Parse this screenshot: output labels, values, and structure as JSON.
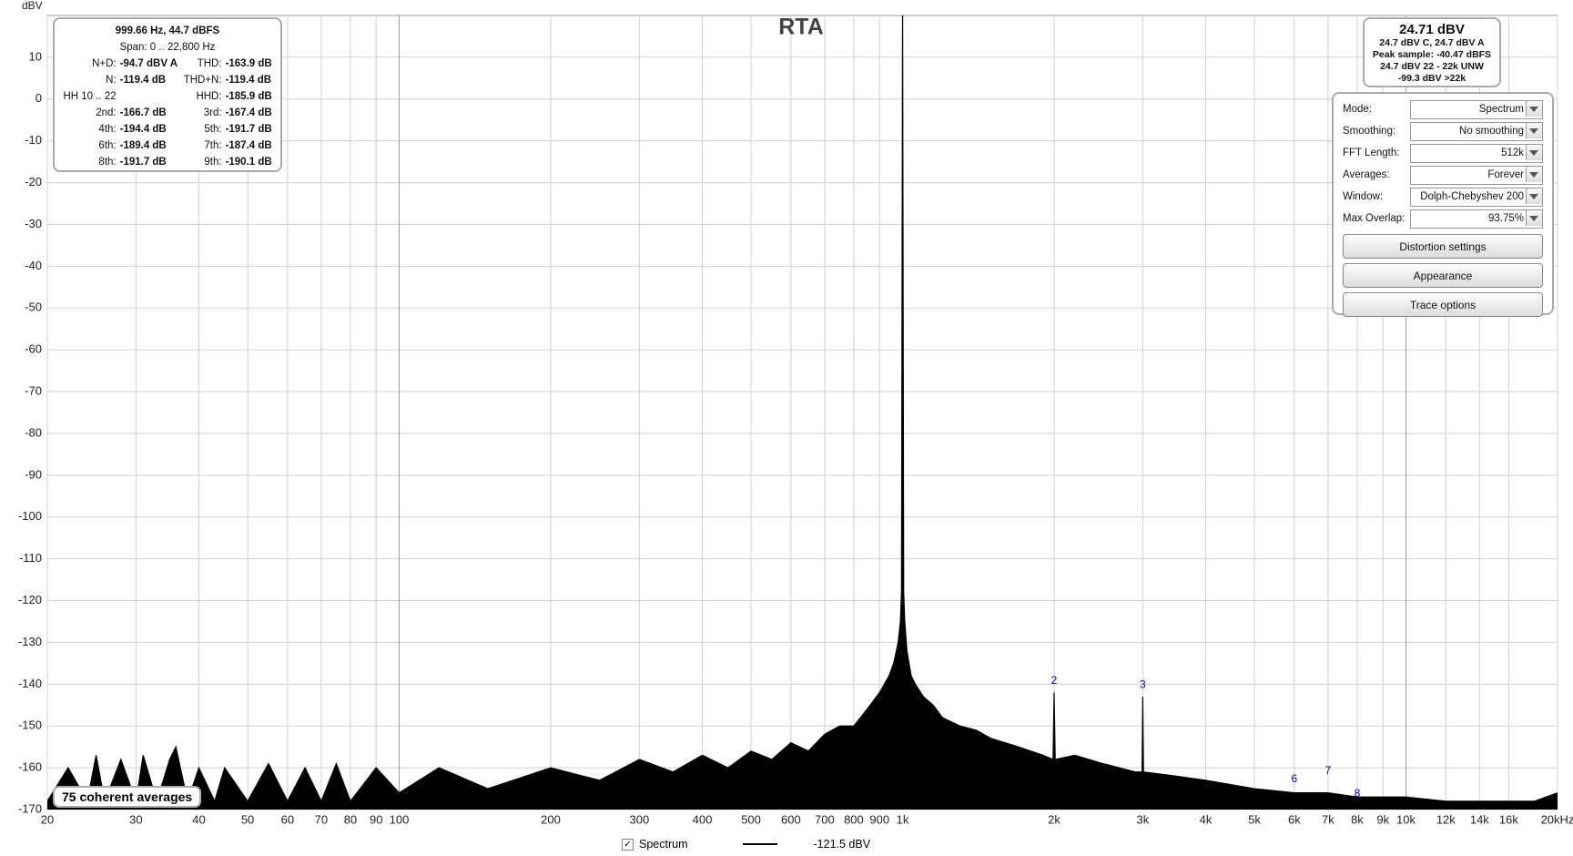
{
  "chart_data": {
    "type": "line",
    "title": "RTA",
    "y_label": "dBV",
    "log_x": true,
    "grid": true,
    "xlim": [
      20,
      20000
    ],
    "ylim": [
      -170,
      20
    ],
    "xticks": [
      20,
      30,
      40,
      50,
      60,
      70,
      80,
      90,
      100,
      200,
      300,
      400,
      500,
      600,
      700,
      800,
      900,
      {
        "value": 1000,
        "label": "1k"
      },
      {
        "value": 2000,
        "label": "2k"
      },
      {
        "value": 3000,
        "label": "3k"
      },
      {
        "value": 4000,
        "label": "4k"
      },
      {
        "value": 5000,
        "label": "5k"
      },
      {
        "value": 6000,
        "label": "6k"
      },
      {
        "value": 7000,
        "label": "7k"
      },
      {
        "value": 8000,
        "label": "8k"
      },
      {
        "value": 9000,
        "label": "9k"
      },
      {
        "value": 10000,
        "label": "10k"
      },
      {
        "value": 12000,
        "label": "12k"
      },
      {
        "value": 14000,
        "label": "14k"
      },
      {
        "value": 16000,
        "label": "16k"
      },
      {
        "value": 20000,
        "label": "20kHz"
      }
    ],
    "yticks": [
      10,
      0,
      -10,
      -20,
      -30,
      -40,
      -50,
      -60,
      -70,
      -80,
      -90,
      -100,
      -110,
      -120,
      -130,
      -140,
      -150,
      -160,
      -170
    ],
    "x": [
      20,
      22,
      24,
      25,
      26,
      28,
      30,
      31,
      33,
      35,
      36,
      38,
      40,
      43,
      45,
      50,
      55,
      60,
      65,
      70,
      75,
      80,
      90,
      100,
      120,
      150,
      200,
      250,
      300,
      350,
      400,
      450,
      500,
      550,
      600,
      650,
      700,
      750,
      800,
      850,
      900,
      940,
      960,
      980,
      990,
      995,
      1000,
      1005,
      1010,
      1020,
      1040,
      1060,
      1100,
      1150,
      1200,
      1300,
      1400,
      1500,
      1700,
      1900,
      1990,
      2000,
      2010,
      2200,
      2500,
      2900,
      2990,
      3000,
      3010,
      3500,
      4000,
      5000,
      6000,
      7000,
      8000,
      10000,
      12000,
      15000,
      18000,
      20000
    ],
    "series": [
      {
        "name": "Spectrum",
        "color": "#000000",
        "legend_label": "-121.5 dBV",
        "values": [
          -168,
          -160,
          -168,
          -157,
          -168,
          -158,
          -168,
          -157,
          -168,
          -158,
          -155,
          -168,
          -160,
          -168,
          -160,
          -168,
          -159,
          -168,
          -160,
          -168,
          -159,
          -168,
          -160,
          -166,
          -160,
          -165,
          -160,
          -163,
          -158,
          -161,
          -157,
          -160,
          -156,
          -158,
          -154,
          -156,
          -152,
          -150,
          -150,
          -146,
          -142,
          -138,
          -135,
          -130,
          -125,
          -118,
          24.7,
          -118,
          -125,
          -132,
          -138,
          -140,
          -143,
          -145,
          -148,
          -150,
          -151,
          -153,
          -155,
          -157,
          -158,
          -142,
          -158,
          -157,
          -159,
          -161,
          -161,
          -143,
          -161,
          -162,
          -163,
          -165,
          -166,
          -166,
          -167,
          -167,
          -168,
          -168,
          -168,
          -166
        ]
      }
    ],
    "annotations": [
      {
        "text": "2",
        "x": 2000,
        "y": -141
      },
      {
        "text": "3",
        "x": 3000,
        "y": -142
      },
      {
        "text": "6",
        "x": 6000,
        "y": -164.5
      },
      {
        "text": "7",
        "x": 7000,
        "y": -162.5
      },
      {
        "text": "8",
        "x": 8000,
        "y": -168
      }
    ],
    "footnote": "75 coherent averages"
  },
  "info": {
    "line1": "999.66 Hz, 44.7 dBFS",
    "line2": "Span: 0 .. 22,800 Hz",
    "rows": [
      [
        "N+D:",
        "-94.7 dBV A",
        "THD:",
        "-163.9 dB"
      ],
      [
        "N:",
        "-119.4 dB",
        "THD+N:",
        "-119.4 dB"
      ],
      [
        "HH 10 .. 22",
        "",
        "HHD:",
        "-185.9 dB"
      ],
      [
        "2nd:",
        "-166.7 dB",
        "3rd:",
        "-167.4 dB"
      ],
      [
        "4th:",
        "-194.4 dB",
        "5th:",
        "-191.7 dB"
      ],
      [
        "6th:",
        "-189.4 dB",
        "7th:",
        "-187.4 dB"
      ],
      [
        "8th:",
        "-191.7 dB",
        "9th:",
        "-190.1 dB"
      ]
    ]
  },
  "level": {
    "main": "24.71 dBV",
    "lines": [
      "24.7 dBV C, 24.7 dBV A",
      "Peak sample: -40.47 dBFS",
      "24.7 dBV 22 - 22k UNW",
      "-99.3 dBV >22k"
    ]
  },
  "controls": {
    "settings": [
      [
        "Mode:",
        "Spectrum"
      ],
      [
        "Smoothing:",
        "No  smoothing"
      ],
      [
        "FFT Length:",
        "512k"
      ],
      [
        "Averages:",
        "Forever"
      ],
      [
        "Window:",
        "Dolph-Chebyshev 200"
      ],
      [
        "Max Overlap:",
        "93.75%"
      ]
    ],
    "buttons": [
      "Distortion settings",
      "Appearance",
      "Trace options"
    ]
  }
}
